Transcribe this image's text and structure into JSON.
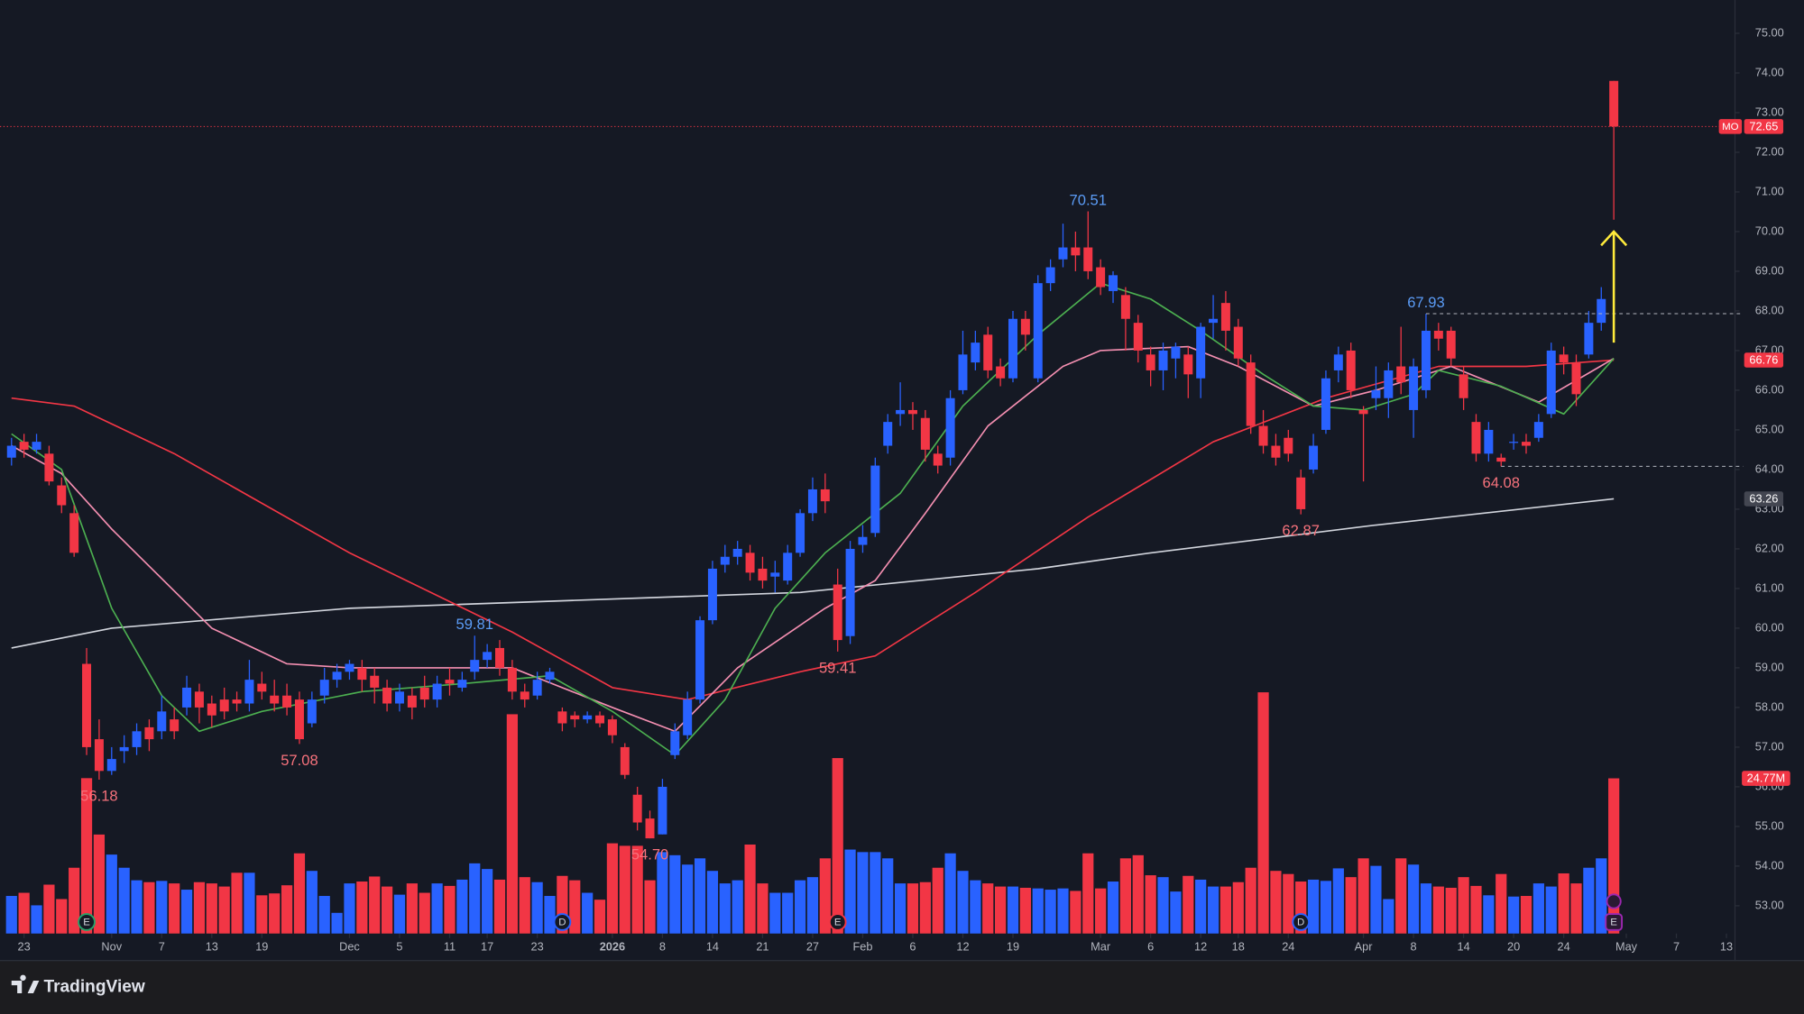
{
  "chart_data": {
    "type": "candlestick",
    "ticker": "MO",
    "brand": "TradingView",
    "colors": {
      "up": "#2962ff",
      "down": "#f23645"
    },
    "xlim": [
      -0.92,
      137.68
    ],
    "ylim": [
      52.3,
      75.84
    ],
    "volume_ylim": [
      0,
      149
    ],
    "yticks": [
      {
        "value": 53,
        "label": "53.00"
      },
      {
        "value": 54,
        "label": "54.00"
      },
      {
        "value": 55,
        "label": "55.00"
      },
      {
        "value": 56,
        "label": "56.00"
      },
      {
        "value": 57,
        "label": "57.00"
      },
      {
        "value": 58,
        "label": "58.00"
      },
      {
        "value": 59,
        "label": "59.00"
      },
      {
        "value": 60,
        "label": "60.00"
      },
      {
        "value": 61,
        "label": "61.00"
      },
      {
        "value": 62,
        "label": "62.00"
      },
      {
        "value": 63,
        "label": "63.00"
      },
      {
        "value": 64,
        "label": "64.00"
      },
      {
        "value": 65,
        "label": "65.00"
      },
      {
        "value": 66,
        "label": "66.00"
      },
      {
        "value": 67,
        "label": "67.00"
      },
      {
        "value": 68,
        "label": "68.00"
      },
      {
        "value": 69,
        "label": "69.00"
      },
      {
        "value": 70,
        "label": "70.00"
      },
      {
        "value": 71,
        "label": "71.00"
      },
      {
        "value": 72,
        "label": "72.00"
      },
      {
        "value": 73,
        "label": "73.00"
      },
      {
        "value": 74,
        "label": "74.00"
      },
      {
        "value": 75,
        "label": "75.00"
      }
    ],
    "xticks": [
      {
        "value": 1,
        "label": "23"
      },
      {
        "value": 8,
        "label": "Nov"
      },
      {
        "value": 12,
        "label": "7"
      },
      {
        "value": 16,
        "label": "13"
      },
      {
        "value": 20,
        "label": "19"
      },
      {
        "value": 27,
        "label": "Dec"
      },
      {
        "value": 31,
        "label": "5"
      },
      {
        "value": 35,
        "label": "11"
      },
      {
        "value": 38,
        "label": "17"
      },
      {
        "value": 42,
        "label": "23"
      },
      {
        "value": 48,
        "label": "2026",
        "bold": true
      },
      {
        "value": 52,
        "label": "8"
      },
      {
        "value": 56,
        "label": "14"
      },
      {
        "value": 60,
        "label": "21"
      },
      {
        "value": 64,
        "label": "27"
      },
      {
        "value": 68,
        "label": "Feb"
      },
      {
        "value": 72,
        "label": "6"
      },
      {
        "value": 76,
        "label": "12"
      },
      {
        "value": 80,
        "label": "19"
      },
      {
        "value": 87,
        "label": "Mar"
      },
      {
        "value": 91,
        "label": "6"
      },
      {
        "value": 95,
        "label": "12"
      },
      {
        "value": 98,
        "label": "18"
      },
      {
        "value": 102,
        "label": "24"
      },
      {
        "value": 108,
        "label": "Apr"
      },
      {
        "value": 112,
        "label": "8"
      },
      {
        "value": 116,
        "label": "14"
      },
      {
        "value": 120,
        "label": "20"
      },
      {
        "value": 124,
        "label": "24"
      },
      {
        "value": 129,
        "label": "May"
      },
      {
        "value": 133,
        "label": "7"
      },
      {
        "value": 137,
        "label": "13"
      }
    ],
    "open": [
      64.3,
      64.7,
      64.5,
      64.4,
      63.6,
      62.9,
      59.1,
      57.2,
      56.4,
      56.9,
      57.0,
      57.5,
      57.4,
      57.7,
      58.0,
      58.4,
      58.1,
      58.2,
      58.2,
      58.1,
      58.6,
      58.3,
      58.3,
      58.2,
      57.6,
      58.3,
      58.7,
      58.9,
      59.0,
      58.8,
      58.5,
      58.1,
      58.3,
      58.5,
      58.2,
      58.7,
      58.5,
      58.9,
      59.2,
      59.5,
      59.0,
      58.4,
      58.3,
      58.7,
      57.9,
      57.8,
      57.7,
      57.8,
      57.7,
      57.0,
      55.8,
      55.2,
      54.8,
      56.8,
      57.3,
      58.2,
      60.2,
      61.6,
      61.8,
      61.9,
      61.5,
      61.3,
      61.2,
      61.9,
      62.9,
      63.5,
      61.1,
      59.8,
      62.1,
      62.4,
      64.6,
      65.4,
      65.5,
      65.3,
      64.4,
      64.3,
      66.0,
      66.7,
      67.4,
      66.6,
      66.3,
      67.8,
      66.3,
      68.7,
      69.3,
      69.6,
      69.6,
      69.1,
      68.5,
      68.4,
      67.7,
      66.9,
      66.5,
      66.8,
      66.9,
      66.3,
      67.7,
      68.2,
      67.6,
      66.7,
      65.1,
      64.6,
      64.8,
      63.8,
      64.0,
      65.0,
      66.5,
      67.0,
      65.5,
      65.8,
      65.8,
      66.6,
      65.5,
      66.0,
      67.5,
      67.5,
      66.4,
      65.2,
      64.4,
      64.3,
      64.7,
      64.7,
      64.8,
      65.4,
      66.9,
      66.7,
      66.9,
      67.7,
      73.8
    ],
    "high": [
      64.8,
      64.9,
      64.9,
      64.6,
      63.8,
      63.1,
      59.5,
      57.7,
      57.0,
      57.3,
      57.6,
      57.7,
      58.3,
      58.0,
      58.8,
      58.6,
      58.3,
      58.5,
      58.4,
      59.2,
      58.9,
      58.7,
      58.6,
      58.4,
      58.4,
      59.0,
      59.1,
      59.2,
      59.2,
      59.0,
      58.7,
      58.6,
      58.5,
      58.8,
      58.8,
      59.0,
      58.9,
      59.81,
      59.6,
      59.7,
      59.2,
      58.6,
      58.9,
      59.0,
      58.0,
      57.9,
      57.9,
      57.9,
      57.8,
      57.1,
      56.0,
      55.4,
      56.2,
      57.6,
      58.4,
      60.3,
      61.7,
      62.1,
      62.2,
      62.1,
      61.8,
      61.7,
      62.1,
      63.0,
      63.8,
      63.9,
      61.5,
      62.2,
      62.6,
      64.3,
      65.4,
      66.2,
      65.7,
      65.5,
      64.6,
      66.0,
      67.5,
      67.5,
      67.6,
      66.8,
      68.0,
      68.0,
      68.9,
      69.3,
      70.2,
      70.0,
      70.51,
      69.3,
      69.0,
      68.6,
      67.9,
      67.1,
      67.2,
      67.2,
      67.1,
      67.7,
      68.4,
      68.5,
      67.8,
      66.9,
      65.5,
      64.9,
      65.0,
      64.0,
      64.9,
      66.5,
      67.1,
      67.2,
      65.6,
      66.6,
      66.7,
      67.6,
      66.8,
      67.93,
      67.7,
      67.6,
      66.6,
      65.4,
      65.2,
      64.4,
      64.9,
      64.9,
      65.4,
      67.2,
      67.1,
      66.9,
      68.0,
      68.6,
      73.8
    ],
    "low": [
      64.1,
      64.3,
      64.4,
      63.6,
      62.9,
      61.8,
      56.8,
      56.18,
      56.3,
      56.6,
      56.8,
      56.9,
      57.2,
      57.2,
      57.8,
      57.6,
      57.5,
      57.7,
      57.9,
      57.9,
      58.2,
      57.9,
      57.8,
      57.08,
      57.5,
      58.1,
      58.5,
      58.7,
      58.4,
      58.1,
      57.9,
      57.9,
      57.7,
      58.0,
      58.0,
      58.3,
      58.4,
      58.7,
      59.0,
      58.8,
      58.2,
      58.0,
      58.2,
      58.6,
      57.4,
      57.5,
      57.6,
      57.5,
      57.1,
      56.2,
      54.9,
      54.7,
      54.8,
      56.7,
      57.2,
      58.1,
      60.1,
      61.4,
      61.6,
      61.2,
      61.0,
      60.9,
      61.1,
      61.8,
      62.7,
      62.9,
      59.41,
      59.6,
      61.9,
      62.3,
      64.4,
      65.1,
      65.0,
      64.2,
      63.9,
      64.1,
      65.9,
      66.5,
      66.3,
      66.1,
      66.2,
      67.0,
      66.2,
      68.5,
      69.1,
      69.0,
      68.8,
      68.4,
      68.2,
      67.0,
      66.7,
      66.1,
      66.0,
      66.3,
      65.8,
      65.8,
      67.3,
      67.0,
      66.6,
      64.9,
      64.4,
      64.1,
      64.2,
      62.87,
      63.9,
      64.9,
      66.2,
      65.8,
      63.7,
      65.5,
      65.3,
      65.9,
      64.8,
      65.8,
      67.0,
      66.6,
      65.5,
      64.2,
      64.2,
      64.08,
      64.5,
      64.4,
      64.7,
      65.3,
      66.4,
      65.6,
      66.8,
      67.5,
      70.3
    ],
    "close": [
      64.6,
      64.5,
      64.7,
      63.7,
      63.1,
      61.9,
      57.0,
      56.4,
      56.7,
      57.0,
      57.4,
      57.2,
      57.9,
      57.4,
      58.5,
      58.0,
      57.8,
      57.9,
      58.1,
      58.7,
      58.4,
      58.1,
      58.0,
      57.2,
      58.2,
      58.7,
      58.9,
      59.1,
      58.7,
      58.5,
      58.1,
      58.4,
      58.0,
      58.2,
      58.6,
      58.6,
      58.7,
      59.2,
      59.4,
      59.0,
      58.4,
      58.2,
      58.7,
      58.9,
      57.6,
      57.7,
      57.8,
      57.6,
      57.3,
      56.3,
      55.1,
      54.7,
      56.0,
      57.4,
      58.2,
      60.2,
      61.5,
      61.8,
      62.0,
      61.4,
      61.2,
      61.4,
      61.9,
      62.9,
      63.5,
      63.2,
      59.7,
      62.0,
      62.3,
      64.1,
      65.2,
      65.5,
      65.4,
      64.5,
      64.1,
      65.8,
      66.9,
      67.2,
      66.5,
      66.3,
      67.8,
      67.4,
      68.7,
      69.1,
      69.6,
      69.4,
      69.0,
      68.6,
      68.9,
      67.8,
      67.0,
      66.5,
      67.0,
      67.1,
      66.4,
      67.6,
      67.8,
      67.5,
      66.8,
      65.1,
      64.6,
      64.3,
      64.4,
      63.0,
      64.6,
      66.3,
      66.9,
      66.0,
      65.4,
      66.0,
      66.5,
      66.2,
      66.6,
      67.5,
      67.3,
      66.8,
      65.8,
      64.4,
      65.0,
      64.2,
      64.7,
      64.6,
      65.2,
      67.0,
      66.7,
      65.9,
      67.7,
      68.3,
      72.65
    ],
    "volume": [
      6.0,
      6.5,
      4.5,
      7.8,
      5.5,
      10.5,
      24.8,
      15.8,
      12.6,
      10.5,
      8.5,
      8.2,
      8.4,
      8.0,
      7.0,
      8.2,
      8.0,
      7.5,
      9.7,
      9.7,
      6.1,
      6.4,
      7.7,
      12.8,
      10.0,
      6.0,
      3.3,
      8.0,
      8.3,
      9.1,
      7.5,
      6.2,
      8.0,
      6.5,
      8.0,
      7.6,
      8.6,
      11.2,
      10.3,
      8.6,
      35.0,
      9.0,
      8.2,
      6.0,
      9.2,
      8.5,
      6.5,
      5.4,
      14.4,
      14.0,
      14.0,
      8.5,
      13.0,
      12.5,
      11.0,
      12.0,
      10.0,
      8.0,
      8.5,
      14.2,
      8.0,
      6.5,
      6.5,
      8.5,
      9.0,
      12.0,
      28.0,
      13.4,
      13.0,
      13.0,
      12.0,
      8.0,
      8.0,
      8.2,
      10.5,
      12.8,
      10.0,
      8.5,
      8.0,
      7.5,
      7.5,
      7.3,
      7.2,
      7.0,
      7.2,
      6.8,
      12.8,
      7.2,
      8.3,
      12.0,
      12.5,
      9.3,
      9.0,
      6.7,
      9.2,
      8.6,
      7.5,
      7.5,
      8.2,
      10.5,
      38.5,
      10.0,
      9.5,
      8.3,
      8.6,
      8.4,
      10.4,
      9.0,
      12.0,
      10.8,
      5.5,
      12.0,
      11.0,
      8.0,
      7.5,
      7.3,
      9.0,
      7.6,
      6.1,
      9.5,
      5.9,
      6.0,
      8.0,
      7.5,
      9.6,
      8.0,
      10.5,
      12.0,
      24.77
    ],
    "volume_label": {
      "value": 24.77,
      "label": "24.77M",
      "color": "#f23645"
    },
    "moving_averages": [
      {
        "color": "#d1d4dc",
        "x": [
          0,
          8,
          27,
          45,
          63,
          82,
          91,
          109,
          128
        ],
        "values": [
          59.5,
          60.0,
          60.5,
          60.7,
          60.9,
          61.5,
          61.9,
          62.6,
          63.26
        ]
      },
      {
        "color": "#f23645",
        "x": [
          0,
          5,
          13,
          27,
          40,
          48,
          54,
          63,
          69,
          77,
          86,
          96,
          105,
          114,
          121,
          128
        ],
        "values": [
          65.8,
          65.6,
          64.4,
          61.9,
          59.9,
          58.5,
          58.2,
          58.9,
          59.3,
          60.9,
          62.8,
          64.7,
          65.8,
          66.6,
          66.6,
          66.76
        ]
      },
      {
        "color": "#f48fb1",
        "x": [
          0,
          4,
          8,
          16,
          22,
          27,
          40,
          48,
          53,
          58,
          65,
          69,
          73,
          78,
          84,
          87,
          94,
          98,
          104,
          109,
          115,
          122,
          128
        ],
        "values": [
          64.6,
          63.9,
          62.5,
          60.0,
          59.1,
          59.0,
          59.0,
          58.0,
          57.4,
          59.0,
          60.5,
          61.2,
          62.9,
          65.1,
          66.6,
          67.0,
          67.1,
          66.6,
          65.6,
          66.0,
          66.6,
          65.7,
          66.8
        ]
      },
      {
        "color": "#4caf50",
        "x": [
          0,
          4,
          8,
          12,
          15,
          20,
          28,
          36,
          43,
          48,
          53,
          57,
          61,
          65,
          71,
          76,
          82,
          87,
          91,
          95,
          100,
          104,
          108,
          112,
          114,
          119,
          124,
          128
        ],
        "values": [
          64.9,
          64.0,
          60.5,
          58.3,
          57.4,
          57.9,
          58.4,
          58.6,
          58.8,
          57.9,
          56.8,
          58.2,
          60.5,
          61.9,
          63.4,
          65.6,
          67.4,
          68.7,
          68.3,
          67.5,
          66.4,
          65.6,
          65.5,
          65.9,
          66.5,
          66.1,
          65.4,
          66.8
        ]
      }
    ],
    "price_labels": [
      {
        "value": 72.65,
        "color": "#f23645",
        "ticker": true,
        "line": true
      },
      {
        "value": 66.76,
        "color": "#f23645"
      },
      {
        "value": 63.26,
        "color": "#434651"
      }
    ],
    "annotations": [
      {
        "index": 86,
        "value": 70.51,
        "color": "#5b9cf6",
        "position": "above"
      },
      {
        "index": 113,
        "value": 67.93,
        "color": "#5b9cf6",
        "position": "above",
        "level": true
      },
      {
        "index": 37,
        "value": 59.81,
        "color": "#5b9cf6",
        "position": "above"
      },
      {
        "index": 103,
        "value": 62.87,
        "color": "#f7727c",
        "position": "below"
      },
      {
        "index": 119,
        "value": 64.08,
        "color": "#f7727c",
        "position": "below",
        "level": true
      },
      {
        "index": 66,
        "value": 59.41,
        "color": "#f7727c",
        "position": "below"
      },
      {
        "index": 23,
        "value": 57.08,
        "color": "#f7727c",
        "position": "below"
      },
      {
        "index": 7,
        "value": 56.18,
        "color": "#f7727c",
        "position": "below"
      },
      {
        "index": 51,
        "value": 54.7,
        "label": "54.70",
        "color": "#f7727c",
        "position": "below"
      }
    ],
    "arrow": {
      "index": 128,
      "from": 67.2,
      "to": 70.0,
      "color": "#ffeb3b"
    },
    "events": [
      {
        "index": 6,
        "label": "E",
        "color": "#26a269"
      },
      {
        "index": 44,
        "label": "D",
        "color": "#2962ff"
      },
      {
        "index": 66,
        "label": "E",
        "color": "#f23645"
      },
      {
        "index": 103,
        "label": "D",
        "color": "#2962ff"
      },
      {
        "index": 128,
        "label": "E",
        "color": "#9c27b0"
      }
    ]
  }
}
